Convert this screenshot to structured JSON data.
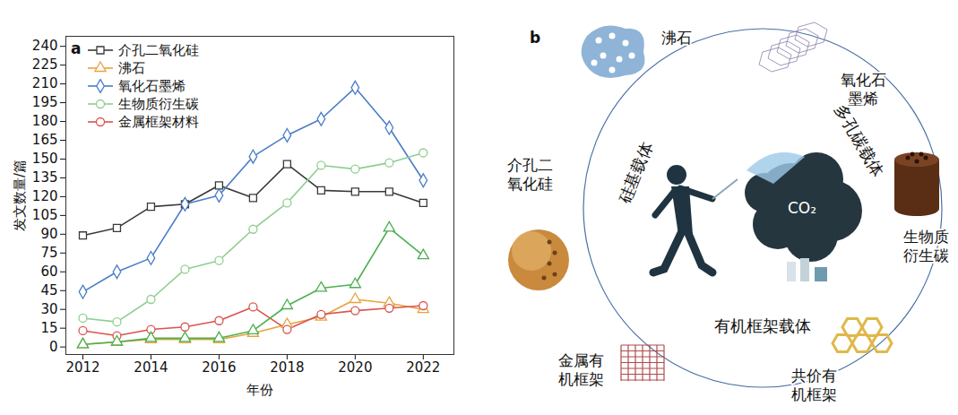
{
  "chart_data": {
    "type": "line",
    "panel_label": "a",
    "x_label": "年份",
    "y_label": "发文数量/篇",
    "x": [
      2012,
      2013,
      2014,
      2015,
      2016,
      2017,
      2018,
      2019,
      2020,
      2021,
      2022
    ],
    "xlim": [
      2011.5,
      2022.9
    ],
    "xticks": [
      2012,
      2014,
      2016,
      2018,
      2020,
      2022
    ],
    "ylim": [
      -6,
      248
    ],
    "yticks": [
      0,
      15,
      30,
      45,
      60,
      75,
      90,
      105,
      120,
      135,
      150,
      165,
      180,
      195,
      210,
      225,
      240
    ],
    "legend": "top-left",
    "grid": false,
    "series": [
      {
        "name": "介孔二氧化硅",
        "color": "#3a3a3a",
        "marker": "square",
        "values": [
          89,
          95,
          112,
          114,
          129,
          119,
          146,
          125,
          124,
          124,
          115
        ]
      },
      {
        "name": "沸石",
        "color": "#e8a33d",
        "marker": "triangle",
        "values": [
          2,
          4,
          6,
          6,
          6,
          11,
          18,
          24,
          38,
          35,
          30
        ]
      },
      {
        "name": "氧化石墨烯",
        "color": "#4a7dc9",
        "marker": "diamond",
        "values": [
          44,
          60,
          71,
          114,
          121,
          152,
          169,
          182,
          207,
          175,
          133
        ]
      },
      {
        "name": "生物质衍生碳",
        "color": "#8fcf8f",
        "marker": "circle",
        "values": [
          23,
          20,
          38,
          62,
          69,
          94,
          115,
          145,
          142,
          147,
          155
        ]
      },
      {
        "name": "金属框架材料",
        "color": "#d9534f",
        "marker": "circle",
        "values": [
          13,
          9,
          14,
          16,
          21,
          32,
          14,
          26,
          29,
          31,
          33
        ]
      },
      {
        "name": null,
        "color": "#4caf50",
        "marker": "triangle",
        "values": [
          2,
          4,
          7,
          7,
          7,
          13,
          33,
          47,
          50,
          95,
          73
        ]
      }
    ]
  },
  "diagram": {
    "panel_label": "b",
    "center_label": "CO₂",
    "groups": [
      "硅基载体",
      "多孔碳载体",
      "有机框架载体"
    ],
    "materials": [
      "沸石",
      "氧化石墨烯",
      "生物质衍生碳",
      "共价有机框架",
      "金属有机框架",
      "介孔二氧化硅"
    ]
  }
}
